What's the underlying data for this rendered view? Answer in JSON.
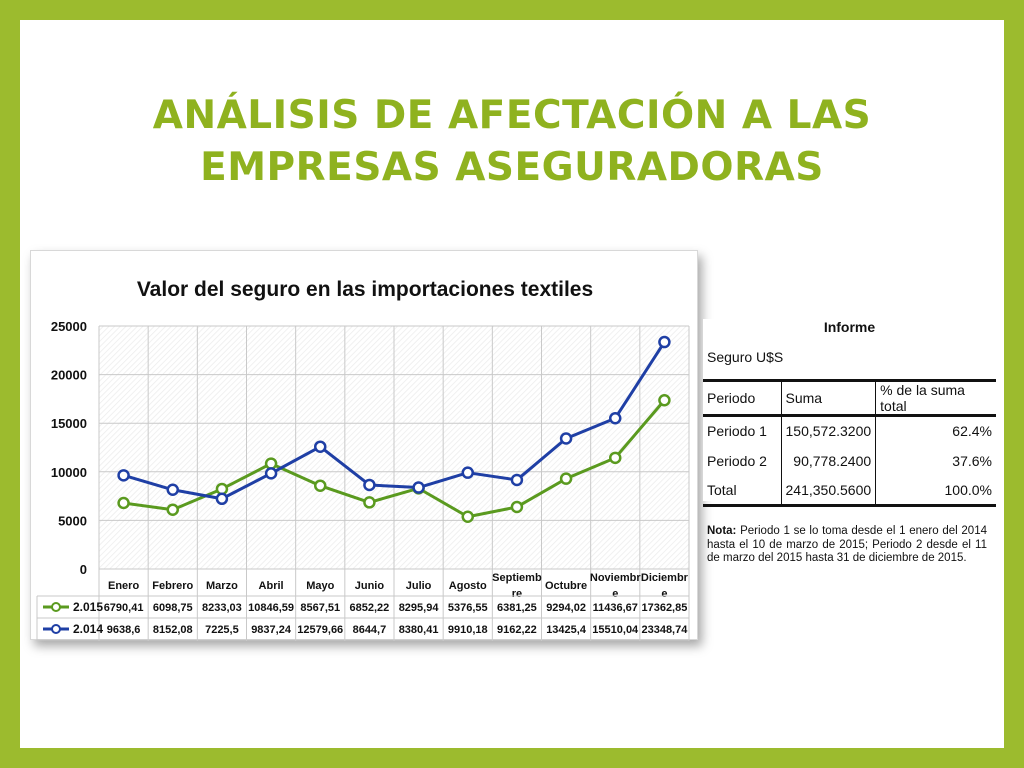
{
  "slide": {
    "title_line1": "ANÁLISIS DE AFECTACIÓN A LAS",
    "title_line2": "EMPRESAS ASEGURADORAS"
  },
  "chart_data": {
    "type": "line",
    "title": "Valor del seguro en las importaciones textiles",
    "categories": [
      "Enero",
      "Febrero",
      "Marzo",
      "Abril",
      "Mayo",
      "Junio",
      "Julio",
      "Agosto",
      "Septiembre",
      "Octubre",
      "Noviembre",
      "Diciembre"
    ],
    "category_labels": [
      [
        "Enero"
      ],
      [
        "Febrero"
      ],
      [
        "Marzo"
      ],
      [
        "Abril"
      ],
      [
        "Mayo"
      ],
      [
        "Junio"
      ],
      [
        "Julio"
      ],
      [
        "Agosto"
      ],
      [
        "Septiemb",
        "re"
      ],
      [
        "Octubre"
      ],
      [
        "Noviembr",
        "e"
      ],
      [
        "Diciembr",
        "e"
      ]
    ],
    "ylim": [
      0,
      25000
    ],
    "yticks": [
      "0",
      "5000",
      "10000",
      "15000",
      "20000",
      "25000"
    ],
    "grid": true,
    "legend": "data-table-below",
    "series": [
      {
        "name": "2.015",
        "color": "#5a9a1f",
        "values": [
          6790.41,
          6098.75,
          8233.03,
          10846.59,
          8567.51,
          6852.22,
          8295.94,
          5376.55,
          6381.25,
          9294.02,
          11436.67,
          17362.85
        ],
        "labels": [
          "6790,41",
          "6098,75",
          "8233,03",
          "10846,59",
          "8567,51",
          "6852,22",
          "8295,94",
          "5376,55",
          "6381,25",
          "9294,02",
          "11436,67",
          "17362,85"
        ]
      },
      {
        "name": "2.014",
        "color": "#1f3fa5",
        "values": [
          9638.6,
          8152.08,
          7225.5,
          9837.24,
          12579.66,
          8644.7,
          8380.41,
          9910.18,
          9162.22,
          13425.4,
          15510.04,
          23348.74
        ],
        "labels": [
          "9638,6",
          "8152,08",
          "7225,5",
          "9837,24",
          "12579,66",
          "8644,7",
          "8380,41",
          "9910,18",
          "9162,22",
          "13425,4",
          "15510,04",
          "23348,74"
        ]
      }
    ]
  },
  "report": {
    "title": "Informe",
    "subtitle": "Seguro U$S",
    "headers": [
      "Periodo",
      "Suma",
      "% de la suma total"
    ],
    "rows": [
      [
        "Periodo 1",
        "150,572.3200",
        "62.4%"
      ],
      [
        "Periodo 2",
        "90,778.2400",
        "37.6%"
      ],
      [
        "Total",
        "241,350.5600",
        "100.0%"
      ]
    ]
  },
  "note": {
    "label": "Nota:",
    "text": " Periodo 1 se lo toma desde el 1 enero del 2014 hasta el 10 de marzo de 2015; Periodo 2 desde el 11 de marzo del 2015 hasta 31 de diciembre de 2015."
  }
}
